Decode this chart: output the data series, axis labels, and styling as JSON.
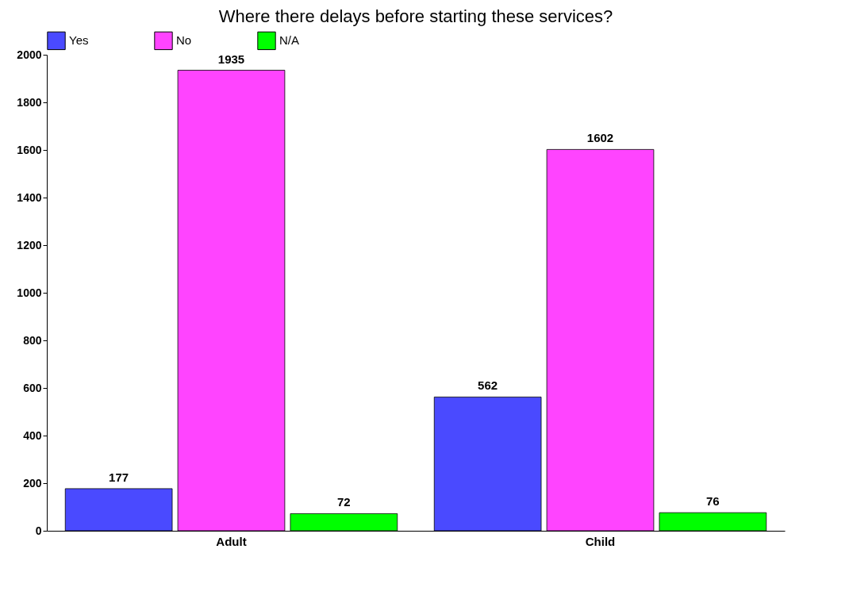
{
  "chart_data": {
    "type": "bar",
    "title": "Where there delays before starting these services?",
    "categories": [
      "Adult",
      "Child"
    ],
    "series": [
      {
        "name": "Yes",
        "color": "#4a4aff",
        "values": [
          177,
          562
        ]
      },
      {
        "name": "No",
        "color": "#ff44ff",
        "values": [
          1935,
          1602
        ]
      },
      {
        "name": "N/A",
        "color": "#00ff00",
        "values": [
          72,
          76
        ]
      }
    ],
    "ylim": [
      0,
      2000
    ],
    "yticks": [
      0,
      200,
      400,
      600,
      800,
      1000,
      1200,
      1400,
      1600,
      1800,
      2000
    ],
    "grid": false,
    "legend": "top",
    "data_labels": true
  }
}
